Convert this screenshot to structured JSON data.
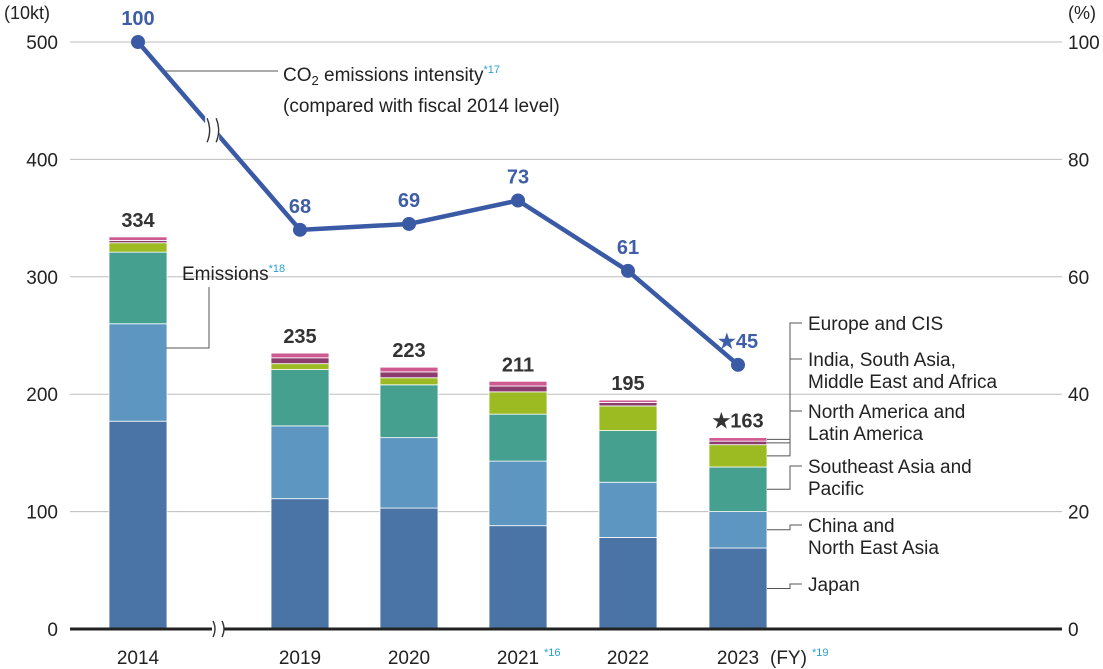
{
  "chart_data": {
    "type": "bar",
    "stacked": true,
    "left_axis": {
      "unit": "(10kt)",
      "ticks": [
        "0",
        "100",
        "200",
        "300",
        "400",
        "500"
      ],
      "ylim": [
        0,
        500
      ]
    },
    "right_axis": {
      "unit": "(%)",
      "ticks": [
        "0",
        "20",
        "40",
        "60",
        "80",
        "100"
      ],
      "ylim": [
        0,
        100
      ]
    },
    "categories": [
      {
        "label": "2014",
        "note": ""
      },
      {
        "label": "2019",
        "note": ""
      },
      {
        "label": "2020",
        "note": ""
      },
      {
        "label": "2021",
        "note": "*16"
      },
      {
        "label": "2022",
        "note": ""
      },
      {
        "label": "2023",
        "note": ""
      }
    ],
    "fy_label": "(FY)",
    "fy_note": "*19",
    "series": [
      {
        "name": "Japan",
        "color": "#4a74a5",
        "values": [
          177,
          111,
          103,
          88,
          78,
          69
        ]
      },
      {
        "name": "China and North East Asia",
        "color": "#5d97c1",
        "values": [
          83,
          62,
          60,
          55,
          47,
          31
        ]
      },
      {
        "name": "Southeast Asia and Pacific",
        "color": "#46a08f",
        "values": [
          61,
          48,
          45,
          40,
          44,
          38
        ]
      },
      {
        "name": "North America and Latin America",
        "color": "#9cbb23",
        "values": [
          8,
          5,
          6,
          19,
          21,
          19
        ]
      },
      {
        "name": "India, South Asia, Middle East and Africa",
        "color": "#8c3d6e",
        "values": [
          2,
          5,
          5,
          5,
          3,
          3
        ]
      },
      {
        "name": "Europe and CIS",
        "color": "#cf5a92",
        "values": [
          3,
          4,
          4,
          4,
          2,
          3
        ]
      }
    ],
    "totals": [
      "334",
      "235",
      "223",
      "211",
      "195",
      "★163"
    ],
    "intensity_line": {
      "name": "CO₂ emissions intensity (compared with fiscal 2014 level)",
      "color": "#3a5aa6",
      "values": [
        100,
        68,
        69,
        73,
        61,
        45
      ],
      "labels": [
        "100",
        "68",
        "69",
        "73",
        "61",
        "★45"
      ]
    },
    "axis_break": true,
    "grid": true
  },
  "annotations": {
    "intensity_line1_pre": "CO",
    "intensity_line1_sub": "2",
    "intensity_line1_post": " emissions  intensity",
    "intensity_note": "*17",
    "intensity_line2": "(compared with fiscal 2014 level)",
    "emissions": "Emissions",
    "emissions_note": "*18"
  },
  "legend": [
    {
      "key": "europe",
      "lines": [
        "Europe and CIS"
      ]
    },
    {
      "key": "india",
      "lines": [
        "India, South Asia,",
        "Middle East and Africa"
      ]
    },
    {
      "key": "north-america",
      "lines": [
        "North America and",
        "Latin America"
      ]
    },
    {
      "key": "southeast-asia",
      "lines": [
        "Southeast Asia and",
        "Pacific"
      ]
    },
    {
      "key": "china",
      "lines": [
        "China and",
        "North East Asia"
      ]
    },
    {
      "key": "japan",
      "lines": [
        "Japan"
      ]
    }
  ]
}
